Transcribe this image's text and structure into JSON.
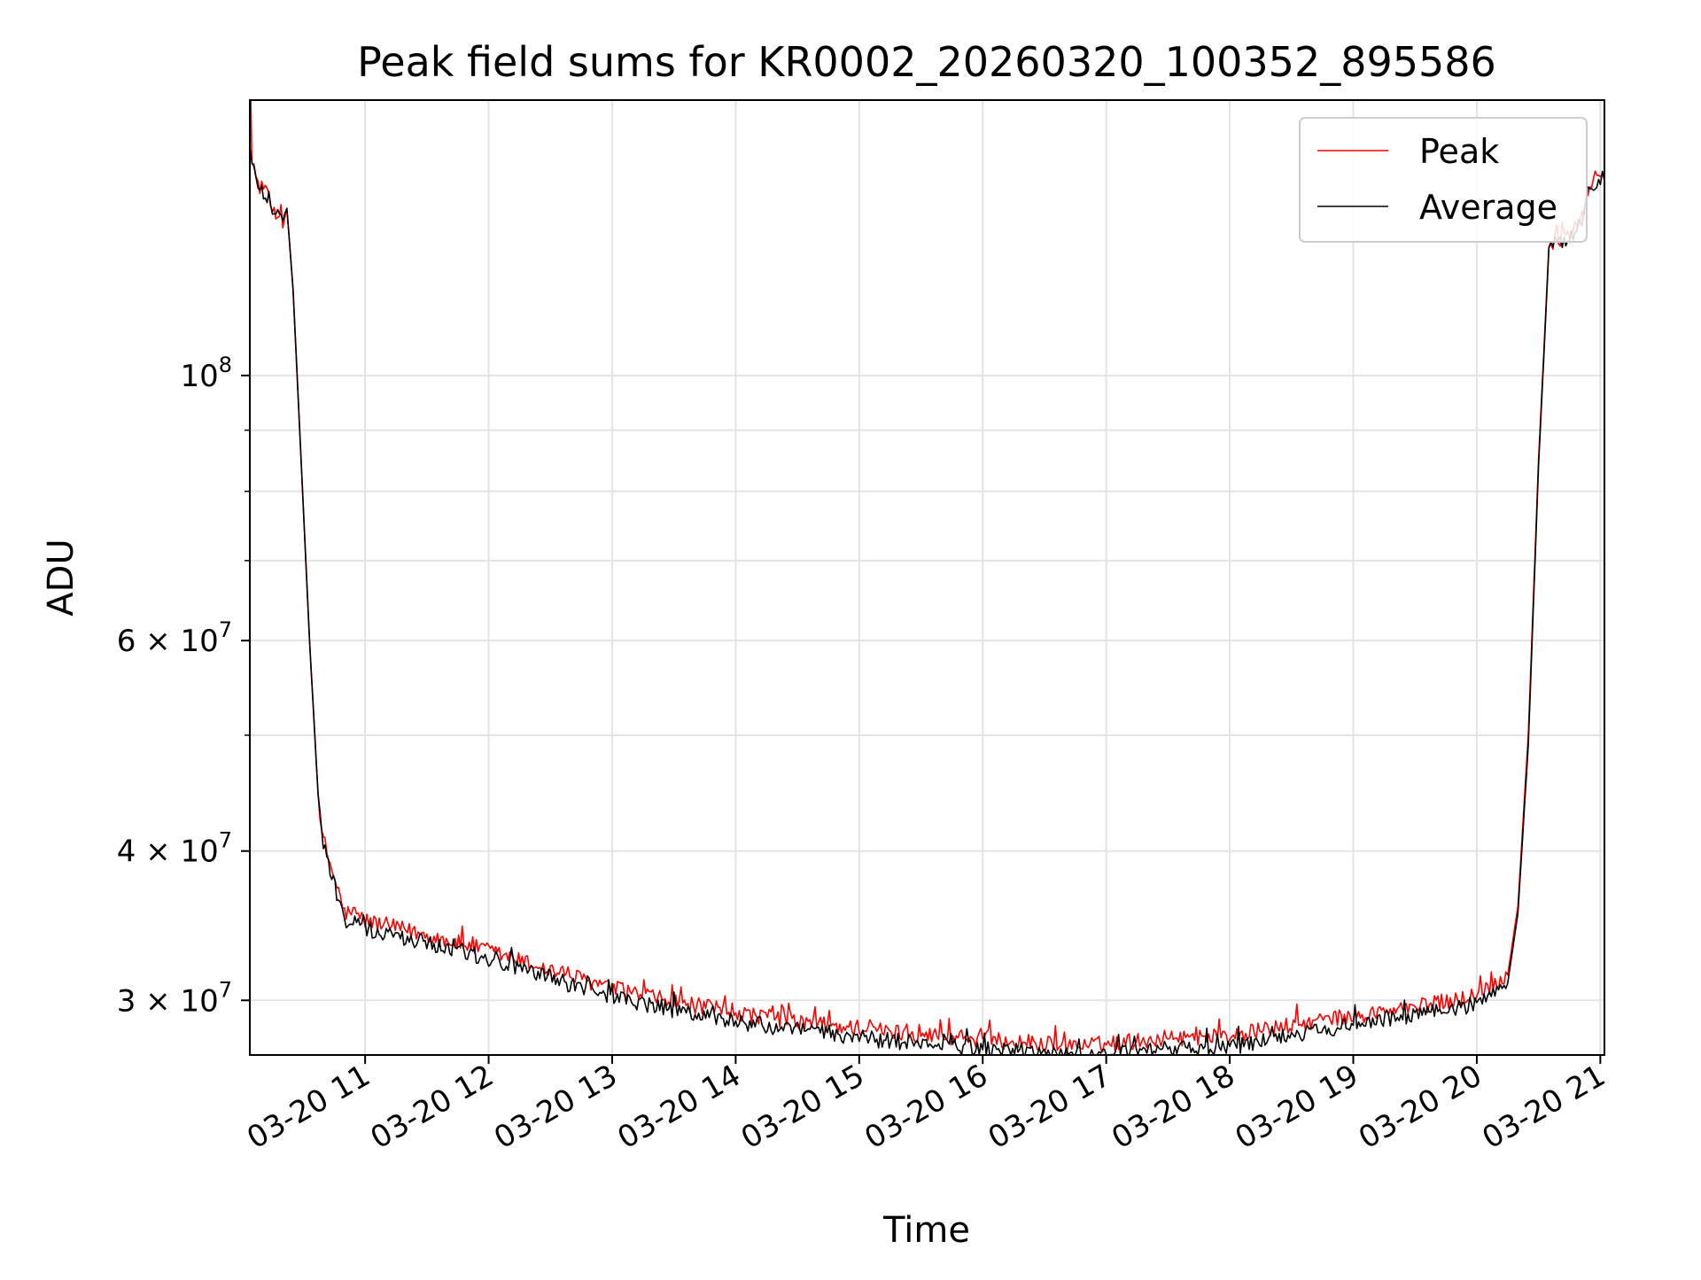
{
  "chart_data": {
    "type": "line",
    "title": "Peak field sums for KR0002_20260320_100352_895586",
    "xlabel": "Time",
    "ylabel": "ADU",
    "yscale": "log",
    "grid": true,
    "legend_placement": "top-right",
    "xlim": [
      "2026-03-20 10:04",
      "2026-03-20 21:02"
    ],
    "ylim": [
      27000000,
      170000000
    ],
    "x_tick_labels": [
      "03-20 11",
      "03-20 12",
      "03-20 13",
      "03-20 14",
      "03-20 15",
      "03-20 16",
      "03-20 17",
      "03-20 18",
      "03-20 19",
      "03-20 20",
      "03-20 21"
    ],
    "x_ticks": [
      "2026-03-20 11:00",
      "2026-03-20 12:00",
      "2026-03-20 13:00",
      "2026-03-20 14:00",
      "2026-03-20 15:00",
      "2026-03-20 16:00",
      "2026-03-20 17:00",
      "2026-03-20 18:00",
      "2026-03-20 19:00",
      "2026-03-20 20:00",
      "2026-03-20 21:00"
    ],
    "y_major_ticks": [
      {
        "value": 100000000,
        "mantissa": "",
        "base": "10",
        "exponent": "8"
      },
      {
        "value": 60000000,
        "mantissa": "6 × ",
        "base": "10",
        "exponent": "7"
      },
      {
        "value": 40000000,
        "mantissa": "4 × ",
        "base": "10",
        "exponent": "7"
      },
      {
        "value": 30000000,
        "mantissa": "3 × ",
        "base": "10",
        "exponent": "7"
      }
    ],
    "y_minor_ticks": [
      90000000,
      80000000,
      70000000,
      50000000
    ],
    "series": [
      {
        "name": "Peak",
        "color": "#ff0000",
        "x": [
          "2026-03-20 10:04",
          "2026-03-20 10:04:30",
          "2026-03-20 10:05",
          "2026-03-20 10:08",
          "2026-03-20 10:15",
          "2026-03-20 10:20",
          "2026-03-20 10:22",
          "2026-03-20 10:25",
          "2026-03-20 10:27",
          "2026-03-20 10:33",
          "2026-03-20 10:38",
          "2026-03-20 10:43",
          "2026-03-20 10:47",
          "2026-03-20 10:50",
          "2026-03-20 10:55",
          "2026-03-20 11:00",
          "2026-03-20 11:30",
          "2026-03-20 12:00",
          "2026-03-20 12:30",
          "2026-03-20 13:00",
          "2026-03-20 13:30",
          "2026-03-20 14:00",
          "2026-03-20 14:30",
          "2026-03-20 15:00",
          "2026-03-20 15:30",
          "2026-03-20 16:00",
          "2026-03-20 16:30",
          "2026-03-20 16:45",
          "2026-03-20 17:00",
          "2026-03-20 17:30",
          "2026-03-20 18:00",
          "2026-03-20 18:30",
          "2026-03-20 19:00",
          "2026-03-20 19:30",
          "2026-03-20 20:00",
          "2026-03-20 20:15",
          "2026-03-20 20:20",
          "2026-03-20 20:25",
          "2026-03-20 20:30",
          "2026-03-20 20:35",
          "2026-03-20 20:38",
          "2026-03-20 20:45",
          "2026-03-20 20:52",
          "2026-03-20 20:55",
          "2026-03-20 21:00",
          "2026-03-20 21:02"
        ],
        "y": [
          170000000,
          170000000,
          150000000,
          145000000,
          138000000,
          135000000,
          138000000,
          118000000,
          100000000,
          60000000,
          42000000,
          39000000,
          37000000,
          35500000,
          35500000,
          35000000,
          34000000,
          33000000,
          31800000,
          30700000,
          29900000,
          29300000,
          28800000,
          28400000,
          28100000,
          27800000,
          27600000,
          27400000,
          27600000,
          27900000,
          28000000,
          28600000,
          29100000,
          29600000,
          30300000,
          31500000,
          36000000,
          50000000,
          85000000,
          128000000,
          130000000,
          131000000,
          136000000,
          145000000,
          147000000,
          146000000
        ]
      },
      {
        "name": "Average",
        "color": "#000000",
        "x": [
          "2026-03-20 10:04",
          "2026-03-20 10:05",
          "2026-03-20 10:08",
          "2026-03-20 10:15",
          "2026-03-20 10:20",
          "2026-03-20 10:22",
          "2026-03-20 10:25",
          "2026-03-20 10:27",
          "2026-03-20 10:33",
          "2026-03-20 10:38",
          "2026-03-20 10:43",
          "2026-03-20 10:47",
          "2026-03-20 10:50",
          "2026-03-20 10:55",
          "2026-03-20 11:00",
          "2026-03-20 11:30",
          "2026-03-20 12:00",
          "2026-03-20 12:30",
          "2026-03-20 13:00",
          "2026-03-20 13:30",
          "2026-03-20 14:00",
          "2026-03-20 14:30",
          "2026-03-20 15:00",
          "2026-03-20 15:30",
          "2026-03-20 16:00",
          "2026-03-20 16:30",
          "2026-03-20 16:45",
          "2026-03-20 17:00",
          "2026-03-20 17:30",
          "2026-03-20 18:00",
          "2026-03-20 18:30",
          "2026-03-20 19:00",
          "2026-03-20 19:30",
          "2026-03-20 20:00",
          "2026-03-20 20:15",
          "2026-03-20 20:20",
          "2026-03-20 20:25",
          "2026-03-20 20:30",
          "2026-03-20 20:35",
          "2026-03-20 20:38",
          "2026-03-20 20:45",
          "2026-03-20 20:52",
          "2026-03-20 20:55",
          "2026-03-20 21:00",
          "2026-03-20 21:02"
        ],
        "y": [
          155000000,
          150000000,
          145000000,
          138000000,
          135000000,
          138000000,
          118000000,
          100000000,
          60000000,
          42000000,
          38500000,
          36500000,
          35000000,
          34800000,
          34400000,
          33500000,
          32500000,
          31300000,
          30200000,
          29400000,
          28800000,
          28300000,
          27900000,
          27600000,
          27300000,
          27100000,
          26900000,
          27000000,
          27300000,
          27400000,
          28100000,
          28600000,
          29100000,
          29800000,
          31000000,
          35500000,
          49000000,
          84000000,
          127000000,
          129000000,
          130500000,
          135500000,
          144500000,
          146500000,
          145500000
        ]
      }
    ]
  }
}
